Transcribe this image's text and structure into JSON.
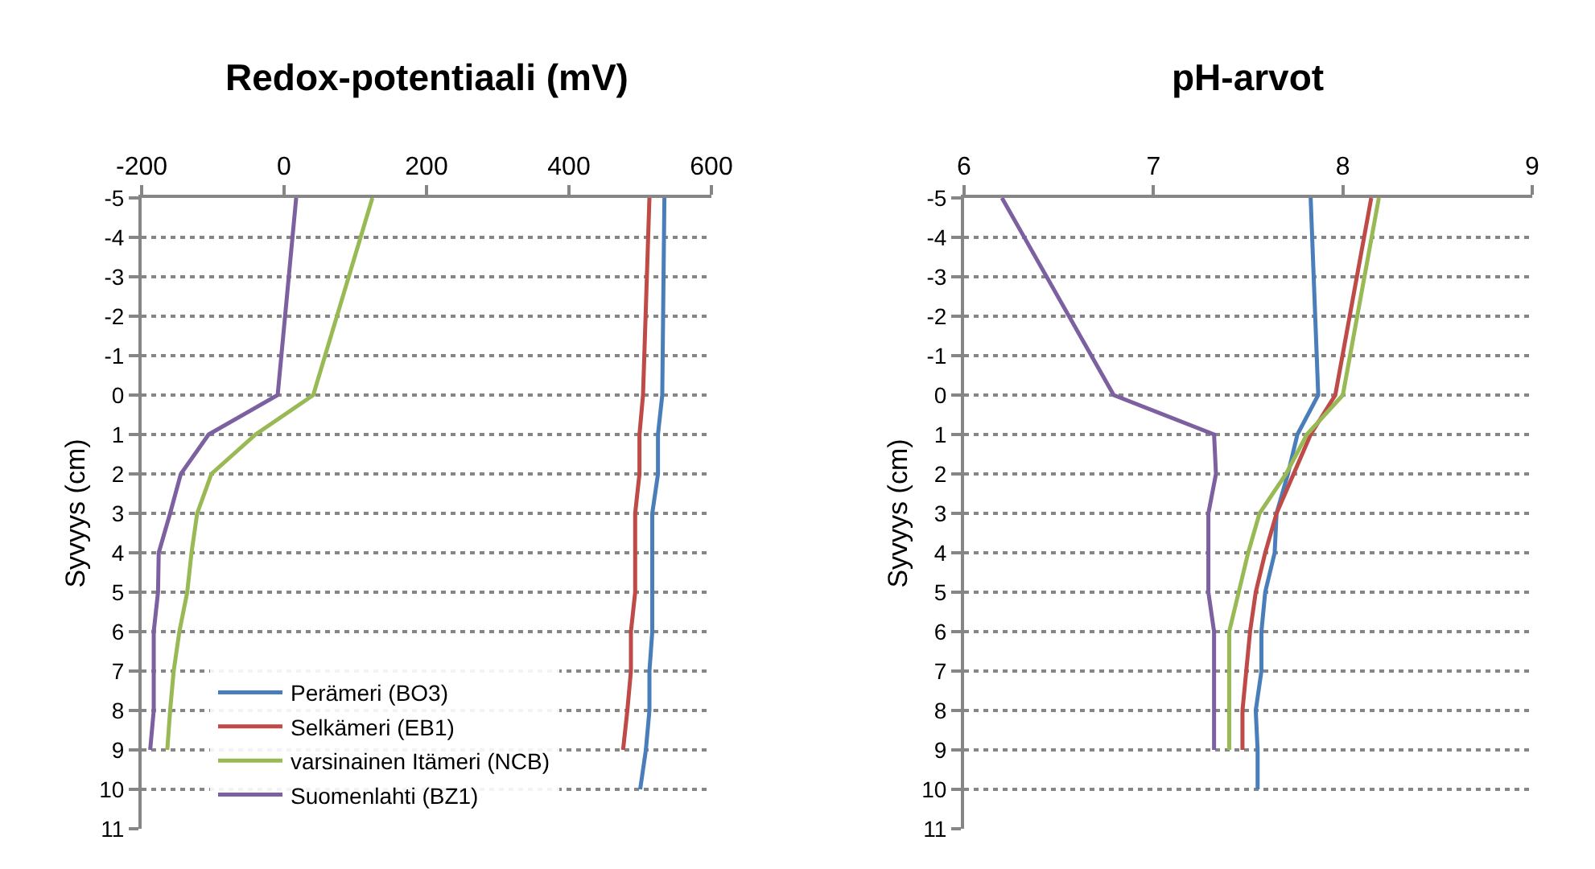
{
  "chart_data": [
    {
      "type": "line",
      "title": "Redox-potentiaali (mV)",
      "ylabel": "Syvyys (cm)",
      "xlim": [
        -200,
        600
      ],
      "xticks": [
        -200,
        0,
        200,
        400,
        600
      ],
      "ylim": [
        11,
        -5
      ],
      "yticks": [
        -5,
        -4,
        -3,
        -2,
        -1,
        0,
        1,
        2,
        3,
        4,
        5,
        6,
        7,
        8,
        9,
        10,
        11
      ],
      "grid": "y",
      "legend": "bottom",
      "line_style": "solid",
      "marker": "none",
      "series": [
        {
          "name": "Perämeri (BO3)",
          "color": "#4a7ebb",
          "x": [
            534,
            531,
            525,
            525,
            517,
            517,
            517,
            517,
            513,
            513,
            508,
            500
          ],
          "values": [
            -5,
            0,
            1,
            2,
            3,
            4,
            5,
            6,
            7,
            8,
            9,
            10
          ]
        },
        {
          "name": "Selkämeri (EB1)",
          "color": "#be4b48",
          "x": [
            513,
            504,
            499,
            499,
            493,
            493,
            493,
            487,
            487,
            482,
            476
          ],
          "values": [
            -5,
            0,
            1,
            2,
            3,
            4,
            5,
            6,
            7,
            8,
            9
          ]
        },
        {
          "name": "varsinainen Itämeri (NCB)",
          "color": "#98b954",
          "x": [
            124,
            41,
            -40,
            -102,
            -122,
            -130,
            -136,
            -147,
            -155,
            -160,
            -164
          ],
          "values": [
            -5,
            0,
            1,
            2,
            3,
            4,
            5,
            6,
            7,
            8,
            9
          ]
        },
        {
          "name": "Suomenlahti (BZ1)",
          "color": "#7d60a0",
          "x": [
            17,
            -9,
            -106,
            -145,
            -160,
            -176,
            -177,
            -183,
            -183,
            -183,
            -188
          ],
          "values": [
            -5,
            0,
            1,
            2,
            3,
            4,
            5,
            6,
            7,
            8,
            9
          ]
        }
      ]
    },
    {
      "type": "line",
      "title": "pH-arvot",
      "ylabel": "Syvyys (cm)",
      "xlim": [
        6,
        9
      ],
      "xticks": [
        6,
        7,
        8,
        9
      ],
      "ylim": [
        11,
        -5
      ],
      "yticks": [
        -5,
        -4,
        -3,
        -2,
        -1,
        0,
        1,
        2,
        3,
        4,
        5,
        6,
        7,
        8,
        9,
        10,
        11
      ],
      "grid": "y",
      "line_style": "solid",
      "marker": "none",
      "series": [
        {
          "color": "#4a7ebb",
          "x": [
            7.83,
            7.87,
            7.76,
            7.71,
            7.65,
            7.64,
            7.59,
            7.57,
            7.57,
            7.54,
            7.55,
            7.55
          ],
          "values": [
            -5,
            0,
            1,
            2,
            3,
            4,
            5,
            6,
            7,
            8,
            9,
            10
          ]
        },
        {
          "color": "#be4b48",
          "x": [
            8.15,
            7.96,
            7.83,
            7.74,
            7.65,
            7.59,
            7.54,
            7.51,
            7.49,
            7.47,
            7.47
          ],
          "values": [
            -5,
            0,
            1,
            2,
            3,
            4,
            5,
            6,
            7,
            8,
            9
          ]
        },
        {
          "color": "#98b954",
          "x": [
            8.19,
            8.0,
            7.81,
            7.7,
            7.56,
            7.5,
            7.45,
            7.4,
            7.4,
            7.4,
            7.4
          ],
          "values": [
            -5,
            0,
            1,
            2,
            3,
            4,
            5,
            6,
            7,
            8,
            9
          ]
        },
        {
          "color": "#7d60a0",
          "x": [
            6.2,
            6.79,
            7.32,
            7.33,
            7.29,
            7.29,
            7.29,
            7.32,
            7.32,
            7.32,
            7.32
          ],
          "values": [
            -5,
            0,
            1,
            2,
            3,
            4,
            5,
            6,
            7,
            8,
            9
          ]
        }
      ]
    }
  ]
}
